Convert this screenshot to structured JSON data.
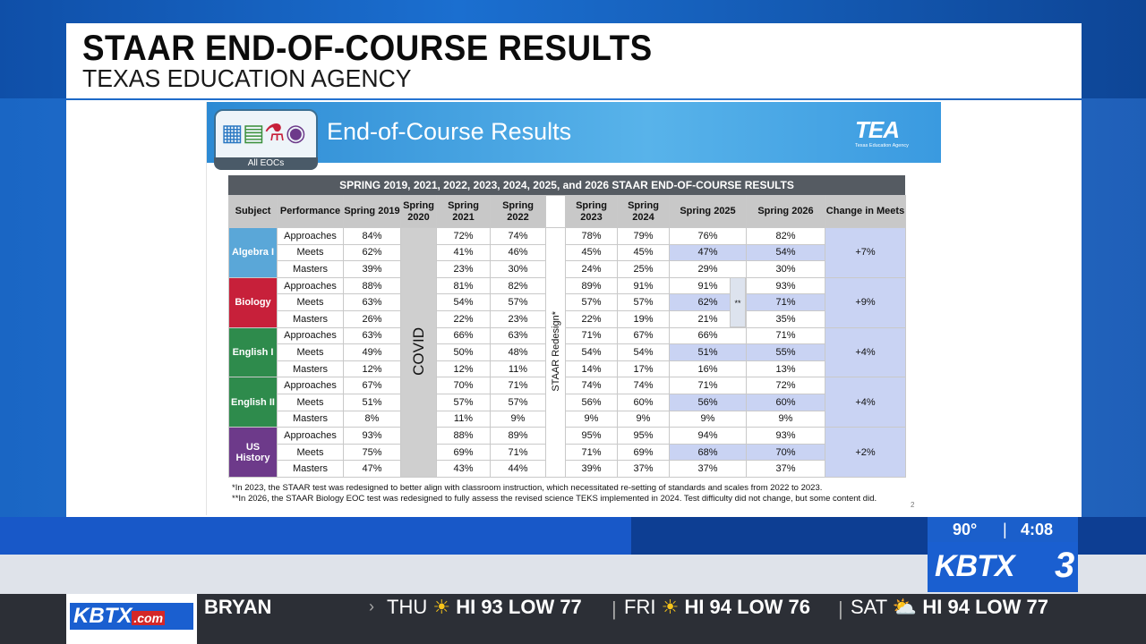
{
  "header": {
    "title": "STAAR END-OF-COURSE RESULTS",
    "subtitle": "TEXAS EDUCATION AGENCY"
  },
  "slide": {
    "title": "End-of-Course Results",
    "icon_label": "All EOCs",
    "icons": [
      "calculator-icon",
      "book-icon",
      "flask-icon",
      "globe-icon"
    ],
    "tea_logo": "TEA",
    "tea_logo_sub": "Texas Education Agency",
    "table_title": "SPRING 2019, 2021, 2022, 2023, 2024, 2025, and 2026 STAAR END-OF-COURSE RESULTS",
    "headers": {
      "subject": "Subject",
      "performance": "Performance",
      "y2019": "Spring 2019",
      "y2020": "Spring 2020",
      "y2021": "Spring 2021",
      "y2022": "Spring 2022",
      "y2023": "Spring 2023",
      "y2024": "Spring 2024",
      "y2025": "Spring 2025",
      "y2026": "Spring 2026",
      "change": "Change in Meets"
    },
    "covid_label": "COVID",
    "redesign_label": "STAAR Redesign*",
    "bio_note_mark": "**",
    "subjects": [
      {
        "name": "Algebra I",
        "change": "+7%",
        "rows": [
          {
            "perf": "Approaches",
            "v": [
              "84%",
              "72%",
              "74%",
              "78%",
              "79%",
              "76%",
              "82%"
            ]
          },
          {
            "perf": "Meets",
            "v": [
              "62%",
              "41%",
              "46%",
              "45%",
              "45%",
              "47%",
              "54%"
            ]
          },
          {
            "perf": "Masters",
            "v": [
              "39%",
              "23%",
              "30%",
              "24%",
              "25%",
              "29%",
              "30%"
            ]
          }
        ]
      },
      {
        "name": "Biology",
        "change": "+9%",
        "rows": [
          {
            "perf": "Approaches",
            "v": [
              "88%",
              "81%",
              "82%",
              "89%",
              "91%",
              "91%",
              "93%"
            ]
          },
          {
            "perf": "Meets",
            "v": [
              "63%",
              "54%",
              "57%",
              "57%",
              "57%",
              "62%",
              "71%"
            ]
          },
          {
            "perf": "Masters",
            "v": [
              "26%",
              "22%",
              "23%",
              "22%",
              "19%",
              "21%",
              "35%"
            ]
          }
        ]
      },
      {
        "name": "English I",
        "change": "+4%",
        "rows": [
          {
            "perf": "Approaches",
            "v": [
              "63%",
              "66%",
              "63%",
              "71%",
              "67%",
              "66%",
              "71%"
            ]
          },
          {
            "perf": "Meets",
            "v": [
              "49%",
              "50%",
              "48%",
              "54%",
              "54%",
              "51%",
              "55%"
            ]
          },
          {
            "perf": "Masters",
            "v": [
              "12%",
              "12%",
              "11%",
              "14%",
              "17%",
              "16%",
              "13%"
            ]
          }
        ]
      },
      {
        "name": "English II",
        "change": "+4%",
        "rows": [
          {
            "perf": "Approaches",
            "v": [
              "67%",
              "70%",
              "71%",
              "74%",
              "74%",
              "71%",
              "72%"
            ]
          },
          {
            "perf": "Meets",
            "v": [
              "51%",
              "57%",
              "57%",
              "56%",
              "60%",
              "56%",
              "60%"
            ]
          },
          {
            "perf": "Masters",
            "v": [
              "8%",
              "11%",
              "9%",
              "9%",
              "9%",
              "9%",
              "9%"
            ]
          }
        ]
      },
      {
        "name": "US History",
        "change": "+2%",
        "rows": [
          {
            "perf": "Approaches",
            "v": [
              "93%",
              "88%",
              "89%",
              "95%",
              "95%",
              "94%",
              "93%"
            ]
          },
          {
            "perf": "Meets",
            "v": [
              "75%",
              "69%",
              "71%",
              "71%",
              "69%",
              "68%",
              "70%"
            ]
          },
          {
            "perf": "Masters",
            "v": [
              "47%",
              "43%",
              "44%",
              "39%",
              "37%",
              "37%",
              "37%"
            ]
          }
        ]
      }
    ],
    "note1": "*In 2023, the STAAR test was redesigned to better align with classroom instruction, which necessitated re-setting of standards and scales from 2022 to 2023.",
    "note2": "**In 2026, the STAAR Biology EOC test was redesigned to fully assess the revised science TEKS implemented in 2024. Test difficulty did not change, but some content did.",
    "page_number": "2"
  },
  "weather": {
    "temp": "90°",
    "time": "4:08"
  },
  "brand": {
    "name": "KBTX",
    "channel": "3",
    "ticker_logo": "KBTX",
    "ticker_logo_suffix": ".com"
  },
  "ticker": {
    "city": "BRYAN",
    "forecast": [
      {
        "day": "THU",
        "hilo": "HI 93 LOW 77",
        "icon": "sun-icon"
      },
      {
        "day": "FRI",
        "hilo": "HI 94 LOW 76",
        "icon": "sun-icon"
      },
      {
        "day": "SAT",
        "hilo": "HI 94 LOW 77",
        "icon": "partly-cloudy-icon"
      }
    ]
  },
  "colors": {
    "algebra": "#5aa7d8",
    "biology": "#c7203a",
    "english": "#2e8b4c",
    "history": "#6d3a8a",
    "highlight": "#c9d3f3",
    "brand_blue": "#1a5fd0"
  }
}
